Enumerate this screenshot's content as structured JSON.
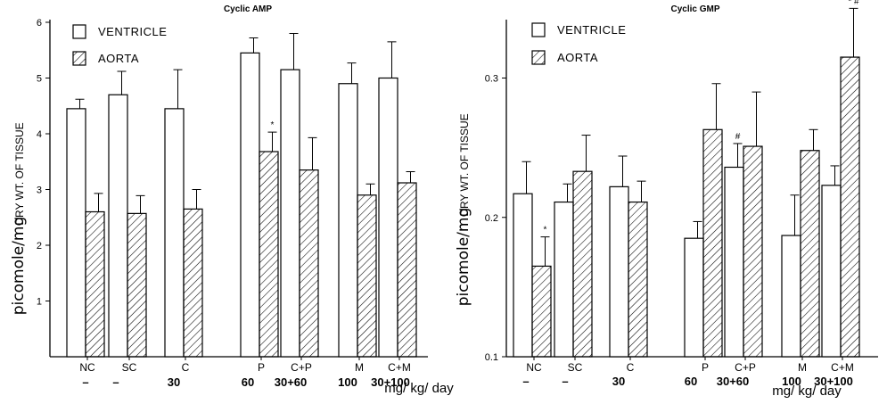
{
  "colors": {
    "ink": "#000000",
    "background": "#ffffff"
  },
  "unit_label": "mg/ kg/ day",
  "chart_data": [
    {
      "type": "bar",
      "title": "Cyclic AMP",
      "ylabel": "picomole/mg DRY WT. OF TISSUE",
      "ylabel_parts": [
        "picomole/mg",
        "DRY WT. OF TISSUE"
      ],
      "xlabel": "mg/ kg/ day",
      "ylim": [
        0,
        6
      ],
      "yticks": [
        "1",
        "2",
        "3",
        "4",
        "5",
        "6"
      ],
      "legend": [
        "VENTRICLE",
        "AORTA"
      ],
      "legend_position": "top-left",
      "categories": [
        "NC",
        "SC",
        "C",
        "P",
        "C+P",
        "M",
        "C+M"
      ],
      "doses": [
        "–",
        "–",
        "30",
        "60",
        "30+60",
        "100",
        "30+100"
      ],
      "series": [
        {
          "name": "VENTRICLE",
          "values": [
            4.45,
            4.7,
            4.45,
            5.45,
            5.15,
            4.9,
            5.0
          ],
          "errors": [
            0.17,
            0.42,
            0.7,
            0.27,
            0.65,
            0.37,
            0.65
          ]
        },
        {
          "name": "AORTA",
          "values": [
            2.6,
            2.57,
            2.65,
            3.68,
            3.35,
            2.9,
            3.12
          ],
          "errors": [
            0.33,
            0.32,
            0.35,
            0.35,
            0.58,
            0.2,
            0.2
          ]
        }
      ],
      "annotations": [
        {
          "series": "AORTA",
          "category": "P",
          "text": "*"
        }
      ]
    },
    {
      "type": "bar",
      "title": "Cyclic GMP",
      "ylabel": "picomole/mg DRY WT. OF TISSUE",
      "ylabel_parts": [
        "picomole/mg",
        "DRY WT. OF TISSUE"
      ],
      "xlabel": "mg/ kg/ day",
      "ylim": [
        0.1,
        0.34
      ],
      "yticks": [
        "0.1",
        "0.2",
        "0.3"
      ],
      "legend": [
        "VENTRICLE",
        "AORTA"
      ],
      "legend_position": "top-left",
      "categories": [
        "NC",
        "SC",
        "C",
        "P",
        "C+P",
        "M",
        "C+M"
      ],
      "doses": [
        "–",
        "–",
        "30",
        "60",
        "30+60",
        "100",
        "30+100"
      ],
      "series": [
        {
          "name": "VENTRICLE",
          "values": [
            0.217,
            0.211,
            0.222,
            0.185,
            0.236,
            0.187,
            0.223
          ],
          "errors": [
            0.023,
            0.013,
            0.022,
            0.012,
            0.017,
            0.029,
            0.014
          ]
        },
        {
          "name": "AORTA",
          "values": [
            0.165,
            0.233,
            0.211,
            0.263,
            0.251,
            0.248,
            0.315
          ],
          "errors": [
            0.021,
            0.026,
            0.015,
            0.033,
            0.039,
            0.015,
            0.035
          ]
        }
      ],
      "annotations": [
        {
          "series": "AORTA",
          "category": "NC",
          "text": "*"
        },
        {
          "series": "VENTRICLE",
          "category": "C+P",
          "text": "#"
        },
        {
          "series": "AORTA",
          "category": "C+M",
          "text": "* #"
        }
      ]
    }
  ]
}
